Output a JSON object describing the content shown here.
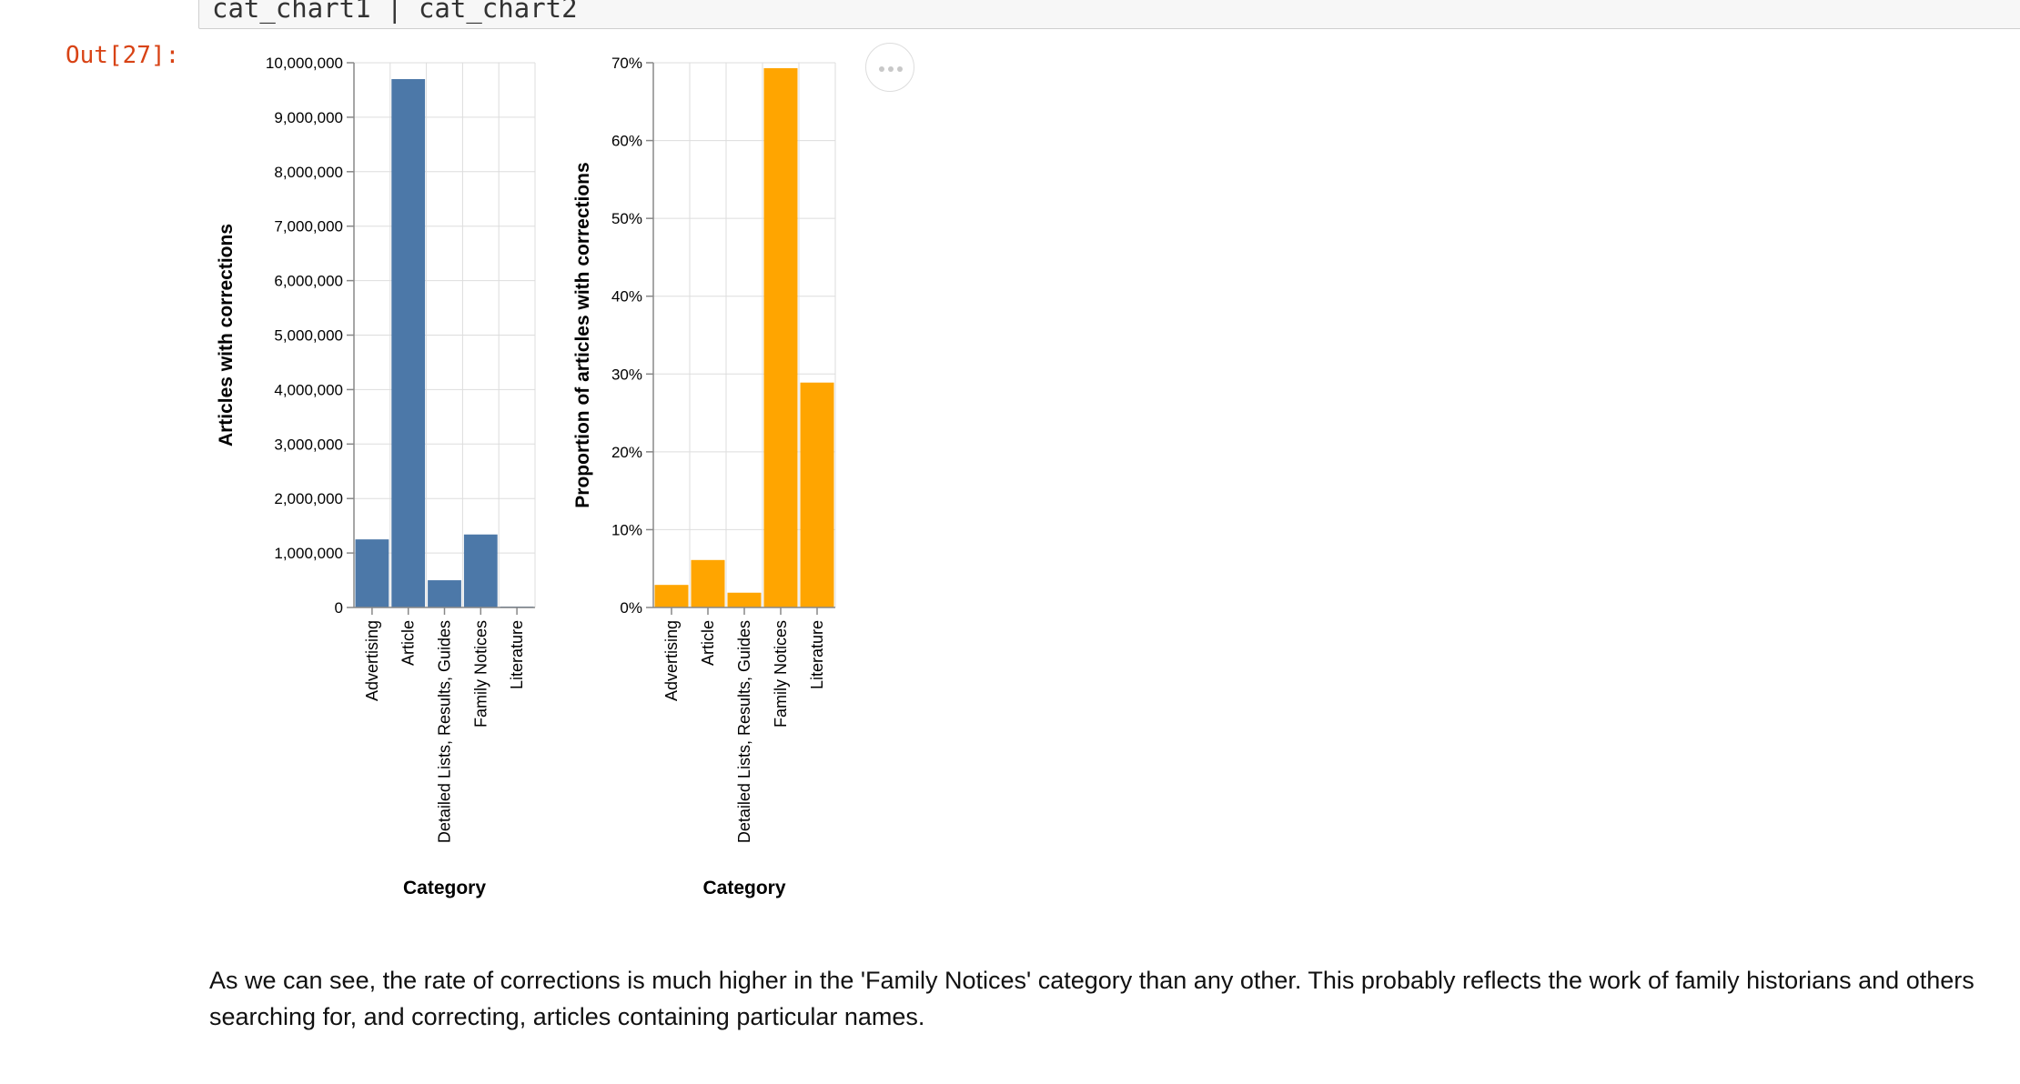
{
  "code_cell": {
    "text": "cat_chart1 | cat_chart2"
  },
  "output_prompt": "Out[27]:",
  "menu": {
    "icon": "ellipsis-icon"
  },
  "colors": {
    "chart1_bar": "#4c78a8",
    "chart2_bar": "#ffa500",
    "grid": "#dddddd",
    "axis": "#888888"
  },
  "narrative": "As we can see, the rate of corrections is much higher in the 'Family Notices' category than any other. This probably reflects the work of family historians and others searching for, and correcting, articles containing particular names.",
  "chart_data": [
    {
      "type": "bar",
      "categories": [
        "Advertising",
        "Article",
        "Detailed Lists, Results, Guides",
        "Family Notices",
        "Literature"
      ],
      "values": [
        1250000,
        9700000,
        500000,
        1340000,
        10000
      ],
      "xlabel": "Category",
      "ylabel": "Articles with corrections",
      "ylim": [
        0,
        10000000
      ],
      "yticks": [
        0,
        1000000,
        2000000,
        3000000,
        4000000,
        5000000,
        6000000,
        7000000,
        8000000,
        9000000,
        10000000
      ],
      "ytick_labels": [
        "0",
        "1,000,000",
        "2,000,000",
        "3,000,000",
        "4,000,000",
        "5,000,000",
        "6,000,000",
        "7,000,000",
        "8,000,000",
        "9,000,000",
        "10,000,000"
      ],
      "grid": true
    },
    {
      "type": "bar",
      "categories": [
        "Advertising",
        "Article",
        "Detailed Lists, Results, Guides",
        "Family Notices",
        "Literature"
      ],
      "values": [
        0.029,
        0.061,
        0.019,
        0.693,
        0.289
      ],
      "xlabel": "Category",
      "ylabel": "Proportion of articles with corrections",
      "ylim": [
        0,
        0.7
      ],
      "yticks": [
        0,
        0.1,
        0.2,
        0.3,
        0.4,
        0.5,
        0.6,
        0.7
      ],
      "ytick_labels": [
        "0%",
        "10%",
        "20%",
        "30%",
        "40%",
        "50%",
        "60%",
        "70%"
      ],
      "grid": true
    }
  ]
}
